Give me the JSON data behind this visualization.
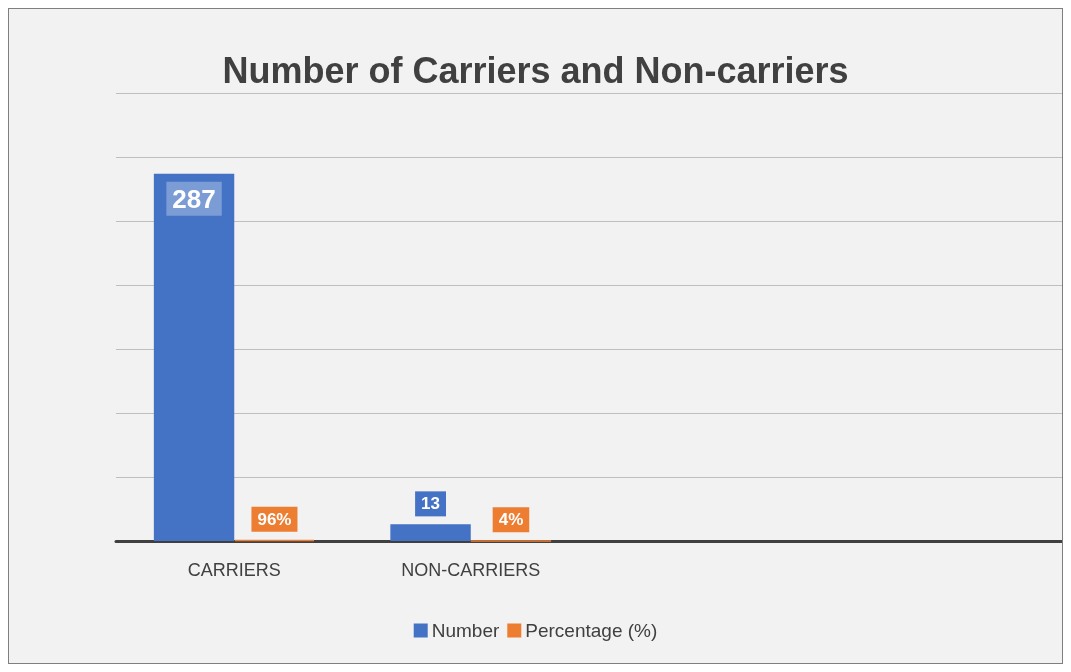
{
  "chart_data": {
    "type": "bar",
    "title": "Number of Carriers and Non-carriers",
    "categories": [
      "CARRIERS",
      "NON-CARRIERS",
      null,
      null
    ],
    "series": [
      {
        "name": "Number",
        "color": "#4472c4",
        "values": [
          287,
          13,
          null,
          null
        ],
        "value_labels": [
          "287",
          "13",
          null,
          null
        ]
      },
      {
        "name": "Percentage (%)",
        "color": "#ed7d31",
        "values": [
          0.96,
          0.04,
          null,
          null
        ],
        "value_labels": [
          "96%",
          "4%",
          null,
          null
        ]
      }
    ],
    "ylim": [
      0,
      350
    ],
    "yticks": [
      {
        "value": 0,
        "label": null
      },
      {
        "value": 50,
        "label": null
      },
      {
        "value": 100,
        "label": null
      },
      {
        "value": 150,
        "label": null
      },
      {
        "value": 200,
        "label": null
      },
      {
        "value": 250,
        "label": null
      },
      {
        "value": 300,
        "label": null
      },
      {
        "value": 350,
        "label": null
      }
    ],
    "tick_labels": "x",
    "grid": "y",
    "legend": "bottom"
  }
}
